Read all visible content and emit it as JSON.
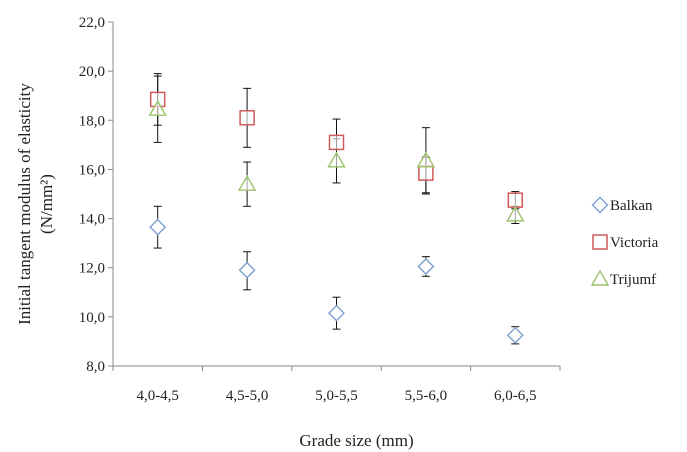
{
  "chart_data": {
    "type": "scatter",
    "xlabel": "Grade size (mm)",
    "ylabel": "Initial tangent modulus of elasticity",
    "ylabel_unit": "(N/mm²)",
    "categories": [
      "4,0-4,5",
      "4,5-5,0",
      "5,0-5,5",
      "5,5-6,0",
      "6,0-6,5"
    ],
    "ylim": [
      8.0,
      22.0
    ],
    "yticks": [
      "8,0",
      "10,0",
      "12,0",
      "14,0",
      "16,0",
      "18,0",
      "20,0",
      "22,0"
    ],
    "ytick_values": [
      8,
      10,
      12,
      14,
      16,
      18,
      20,
      22
    ],
    "grid": false,
    "legend_position": "right",
    "error_bars": true,
    "series": [
      {
        "name": "Balkan",
        "marker": "diamond",
        "color": "#7f9fcf",
        "values": [
          13.65,
          11.9,
          10.15,
          12.05,
          9.25
        ],
        "err_low": [
          12.8,
          11.1,
          9.5,
          11.65,
          8.9
        ],
        "err_high": [
          14.5,
          12.65,
          10.8,
          12.45,
          9.6
        ]
      },
      {
        "name": "Victoria",
        "marker": "square",
        "color": "#d05a5a",
        "values": [
          18.85,
          18.1,
          17.1,
          15.85,
          14.75
        ],
        "err_low": [
          17.8,
          16.9,
          16.1,
          15.0,
          14.4
        ],
        "err_high": [
          19.9,
          19.3,
          18.05,
          16.5,
          15.1
        ]
      },
      {
        "name": "Trijumf",
        "marker": "triangle",
        "color": "#9cc46a",
        "values": [
          18.45,
          15.4,
          16.35,
          16.35,
          14.15
        ],
        "err_low": [
          17.1,
          14.5,
          15.45,
          15.05,
          13.8
        ],
        "err_high": [
          19.8,
          16.3,
          17.25,
          17.7,
          14.5
        ]
      }
    ]
  }
}
